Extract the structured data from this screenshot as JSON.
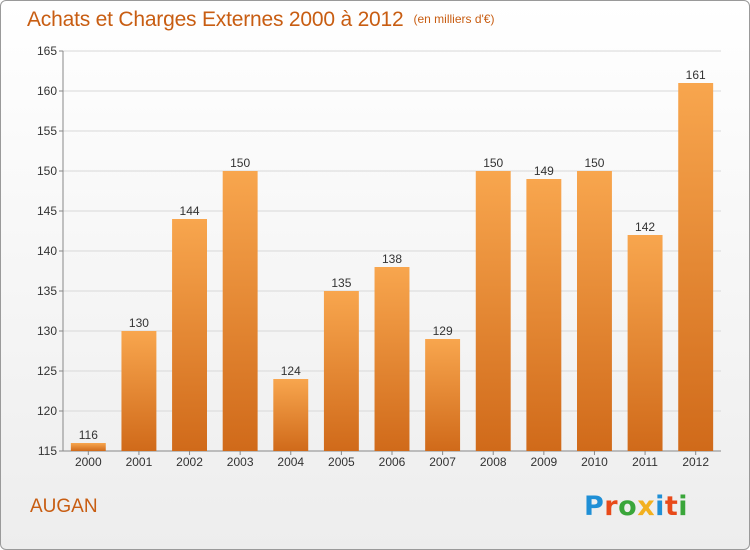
{
  "header": {
    "title": "Achats et Charges Externes 2000 à 2012",
    "subtitle": "(en milliers d'€)"
  },
  "commune": "AUGAN",
  "logo": {
    "text": "Proxiti",
    "colors": [
      "#1f8fd6",
      "#e84a1a",
      "#3aa63a",
      "#f2b01e",
      "#1f8fd6",
      "#e84a1a",
      "#3aa63a"
    ]
  },
  "colors": {
    "bar_top": "#f8a64e",
    "bar_bottom": "#d06a1a",
    "title": "#c85d12",
    "grid": "#d8d8d8"
  },
  "chart_data": {
    "type": "bar",
    "categories": [
      "2000",
      "2001",
      "2002",
      "2003",
      "2004",
      "2005",
      "2006",
      "2007",
      "2008",
      "2009",
      "2010",
      "2011",
      "2012"
    ],
    "values": [
      116,
      130,
      144,
      150,
      124,
      135,
      138,
      129,
      150,
      149,
      150,
      142,
      161
    ],
    "title": "Achats et Charges Externes 2000 à 2012",
    "subtitle": "(en milliers d'€)",
    "ylim": [
      115,
      165
    ],
    "yticks": [
      115,
      120,
      125,
      130,
      135,
      140,
      145,
      150,
      155,
      160,
      165
    ],
    "grid": true
  }
}
